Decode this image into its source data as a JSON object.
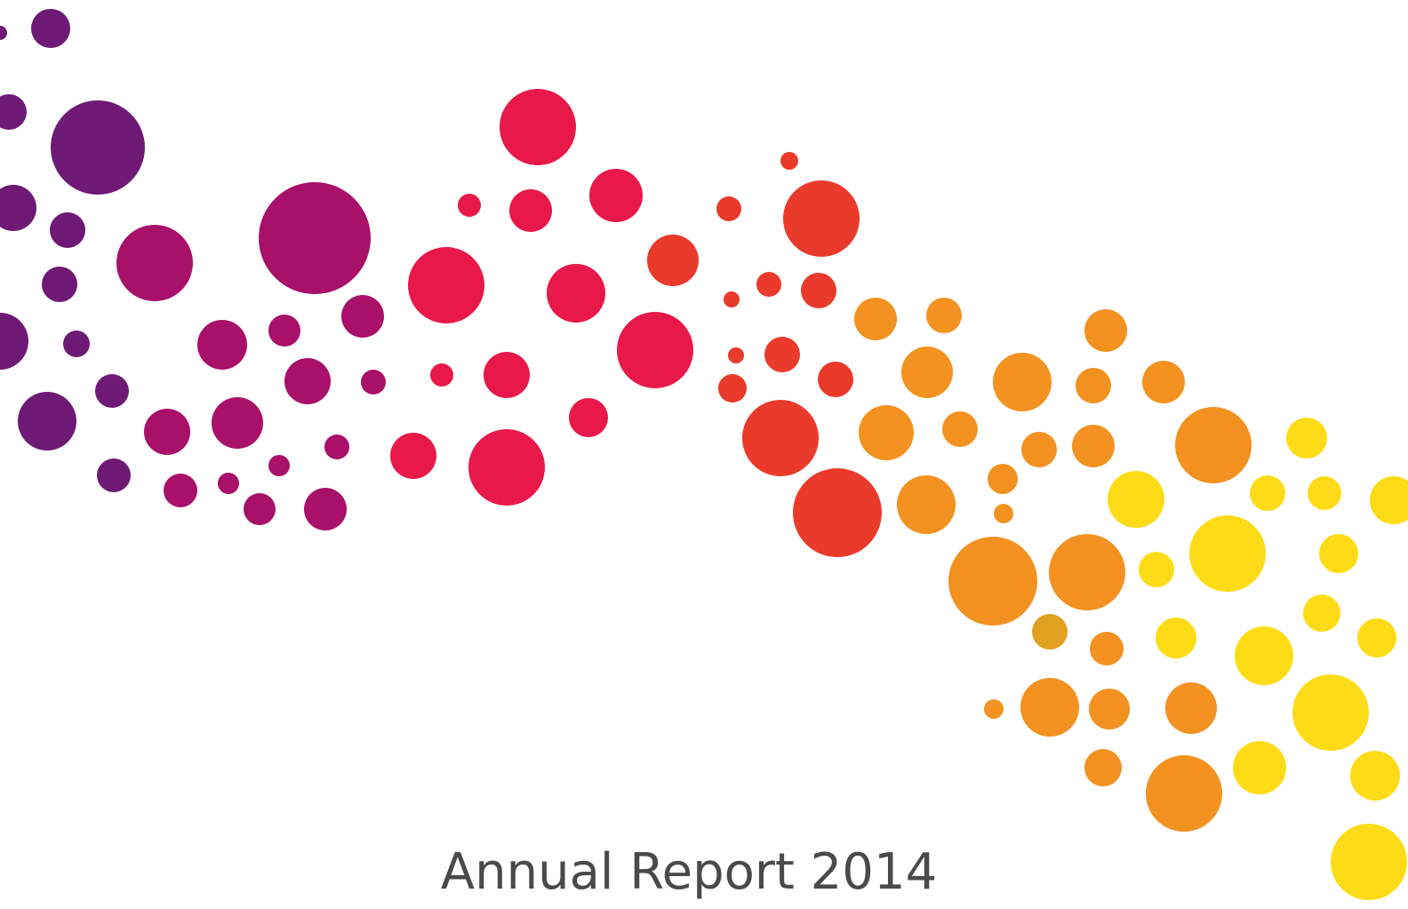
{
  "cover": {
    "title": "Annual Report 2014"
  }
}
